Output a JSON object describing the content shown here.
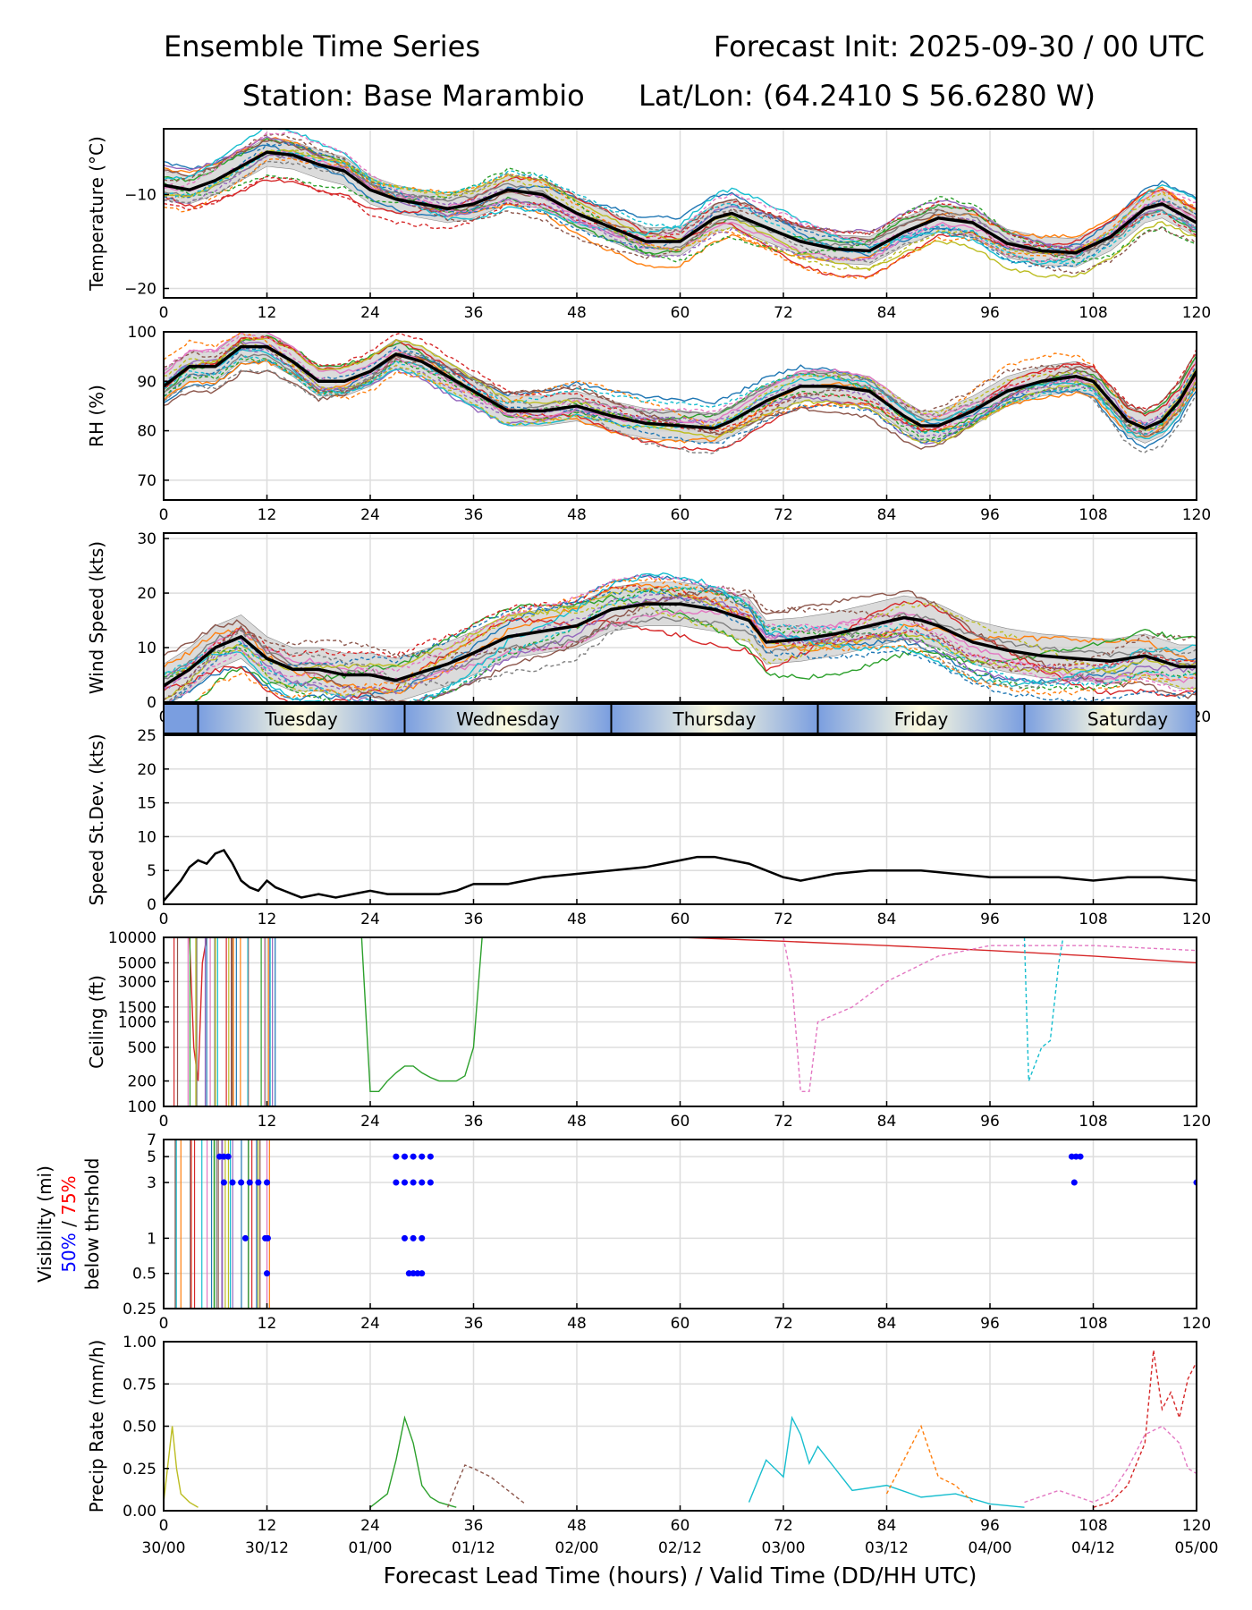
{
  "header": {
    "title": "Ensemble Time Series",
    "init": "Forecast Init: 2025-09-30 / 00 UTC",
    "station": "Station: Base Marambio",
    "latlon": "Lat/Lon: (64.2410 S 56.6280 W)"
  },
  "xaxis": {
    "ticks": [
      "0",
      "12",
      "24",
      "36",
      "48",
      "60",
      "72",
      "84",
      "96",
      "108",
      "120"
    ],
    "valid_times": [
      "30/00",
      "30/12",
      "01/00",
      "01/12",
      "02/00",
      "02/12",
      "03/00",
      "03/12",
      "04/00",
      "04/12",
      "05/00"
    ],
    "label": "Forecast Lead Time (hours) / Valid Time (DD/HH UTC)"
  },
  "days": {
    "labels": [
      "Tuesday",
      "Wednesday",
      "Thursday",
      "Friday",
      "Saturday"
    ],
    "boundaries_hours": [
      4,
      28,
      52,
      76,
      100
    ]
  },
  "colors": {
    "members": [
      "#1f77b4",
      "#ff7f0e",
      "#2ca02c",
      "#d62728",
      "#9467bd",
      "#8c564b",
      "#e377c2",
      "#7f7f7f",
      "#bcbd22",
      "#17becf"
    ],
    "mean": "#000000",
    "spread": "#cccccc",
    "p50": "#0000ff",
    "p75": "#ff0000",
    "day_blue": "#7a9ee0",
    "day_cream": "#fdfbe0"
  },
  "chart_data": [
    {
      "id": "temperature",
      "type": "line",
      "ylabel": "Temperature (°C)",
      "ylim": [
        -21,
        -3
      ],
      "yticks": [
        "−10",
        "−20"
      ],
      "ytick_values": [
        -10,
        -20
      ],
      "mean": {
        "x": [
          0,
          3,
          6,
          9,
          12,
          15,
          18,
          21,
          24,
          27,
          30,
          33,
          36,
          40,
          44,
          48,
          52,
          56,
          60,
          64,
          66,
          70,
          74,
          78,
          82,
          86,
          90,
          94,
          98,
          102,
          106,
          110,
          114,
          116,
          120
        ],
        "y": [
          -9,
          -9.5,
          -8.5,
          -7,
          -5.5,
          -5.8,
          -6.8,
          -7.5,
          -9.5,
          -10.5,
          -11,
          -11.5,
          -11,
          -9.5,
          -10,
          -12,
          -13.5,
          -15,
          -15,
          -12.5,
          -12,
          -13.5,
          -15,
          -15.8,
          -16,
          -14,
          -12.5,
          -13,
          -15.2,
          -16,
          -16.2,
          -14.5,
          -11.5,
          -11,
          -13
        ]
      },
      "spread_halfwidth": 1.5
    },
    {
      "id": "rh",
      "type": "line",
      "ylabel": "RH (%)",
      "ylim": [
        66,
        100
      ],
      "yticks": [
        "100",
        "90",
        "80",
        "70"
      ],
      "ytick_values": [
        100,
        90,
        80,
        70
      ],
      "mean": {
        "x": [
          0,
          3,
          6,
          9,
          12,
          15,
          18,
          21,
          24,
          27,
          30,
          33,
          36,
          40,
          44,
          48,
          52,
          56,
          60,
          64,
          66,
          70,
          74,
          78,
          82,
          86,
          88,
          90,
          94,
          98,
          102,
          106,
          108,
          110,
          112,
          114,
          116,
          118,
          120
        ],
        "y": [
          89,
          93,
          93,
          97,
          97,
          94,
          90,
          90,
          92,
          95.5,
          94,
          91,
          88,
          84,
          84,
          85,
          83,
          81.5,
          81,
          80.5,
          82,
          86,
          89,
          89,
          88,
          83,
          81,
          81,
          84,
          88,
          90,
          91,
          90,
          86,
          82,
          80.5,
          82,
          86,
          92
        ]
      },
      "spread_halfwidth": 3
    },
    {
      "id": "wind_speed",
      "type": "line",
      "ylabel": "Wind Speed (kts)",
      "ylim": [
        0,
        31
      ],
      "yticks": [
        "0",
        "10",
        "20",
        "30"
      ],
      "ytick_values": [
        0,
        10,
        20,
        30
      ],
      "mean": {
        "x": [
          0,
          1,
          3,
          6,
          9,
          12,
          15,
          18,
          21,
          24,
          27,
          30,
          33,
          36,
          40,
          44,
          48,
          52,
          56,
          60,
          64,
          68,
          70,
          74,
          78,
          82,
          86,
          88,
          90,
          94,
          98,
          102,
          106,
          110,
          114,
          118,
          120
        ],
        "y": [
          3,
          4,
          6,
          10,
          12,
          8,
          6,
          6,
          5,
          5,
          4,
          5.5,
          7,
          9,
          12,
          13,
          14,
          17,
          18,
          18,
          17,
          15,
          11,
          11.5,
          12.5,
          14,
          15.5,
          15,
          14,
          11,
          9.5,
          8.5,
          8,
          7.5,
          8.5,
          6.5,
          6.5
        ]
      },
      "spread_halfwidth": 4
    },
    {
      "id": "speed_stdev",
      "type": "line",
      "ylabel": "Speed St.Dev. (kts)",
      "ylim": [
        0,
        25
      ],
      "yticks": [
        "0",
        "5",
        "10",
        "15",
        "20",
        "25"
      ],
      "ytick_values": [
        0,
        5,
        10,
        15,
        20,
        25
      ],
      "series": [
        {
          "name": "St.Dev.",
          "x": [
            0,
            1,
            2,
            3,
            4,
            5,
            6,
            7,
            8,
            9,
            10,
            11,
            12,
            13,
            14,
            15,
            16,
            18,
            20,
            22,
            24,
            26,
            28,
            30,
            32,
            34,
            36,
            40,
            44,
            48,
            52,
            56,
            60,
            62,
            64,
            68,
            70,
            72,
            74,
            78,
            82,
            84,
            88,
            92,
            96,
            100,
            104,
            108,
            112,
            116,
            120
          ],
          "y": [
            0.5,
            2,
            3.5,
            5.5,
            6.5,
            6,
            7.5,
            8,
            6,
            3.5,
            2.5,
            2,
            3.5,
            2.5,
            2,
            1.5,
            1,
            1.5,
            1,
            1.5,
            2,
            1.5,
            1.5,
            1.5,
            1.5,
            2,
            3,
            3,
            4,
            4.5,
            5,
            5.5,
            6.5,
            7,
            7,
            6,
            5,
            4,
            3.5,
            4.5,
            5,
            5,
            5,
            4.5,
            4,
            4,
            4,
            3.5,
            4,
            4,
            3.5
          ]
        }
      ]
    },
    {
      "id": "ceiling",
      "type": "line",
      "ylabel": "Ceiling (ft)",
      "scale": "log",
      "ylim": [
        100,
        10000
      ],
      "yticks": [
        "10000",
        "5000",
        "3000",
        "1500",
        "1000",
        "500",
        "200",
        "100"
      ],
      "ytick_values": [
        10000,
        5000,
        3000,
        1500,
        1000,
        500,
        200,
        100
      ],
      "series": [
        {
          "name": "m1",
          "style": "solid",
          "x": [
            0,
            3,
            3.5,
            4,
            4.5,
            5,
            60,
            72,
            84,
            96,
            108,
            120
          ],
          "y": [
            10000,
            10000,
            500,
            200,
            5000,
            10000,
            10000,
            9000,
            8000,
            7000,
            6000,
            5000
          ]
        },
        {
          "name": "m2",
          "style": "dashed",
          "x": [
            72,
            73,
            74,
            75,
            76,
            80,
            84,
            90,
            96,
            108,
            120
          ],
          "y": [
            10000,
            3000,
            150,
            150,
            1000,
            1500,
            3000,
            6000,
            8000,
            8000,
            7000
          ]
        },
        {
          "name": "m3",
          "style": "dashed",
          "x": [
            100,
            100.5,
            102,
            103,
            104,
            104.5,
            120
          ],
          "y": [
            10000,
            200,
            500,
            600,
            5000,
            10000,
            10000
          ]
        },
        {
          "name": "m4",
          "style": "solid",
          "x": [
            23,
            24,
            25,
            26,
            27,
            28,
            29,
            30,
            31,
            32,
            33,
            34,
            35,
            36,
            37,
            120
          ],
          "y": [
            10000,
            150,
            150,
            200,
            250,
            300,
            300,
            250,
            220,
            200,
            200,
            200,
            230,
            500,
            10000,
            10000
          ]
        }
      ]
    },
    {
      "id": "visibility",
      "type": "line",
      "ylabel": "Visibility (mi)",
      "ylabel2_blue": "50%",
      "ylabel2_sep": " / ",
      "ylabel2_red": "75%",
      "ylabel3": "below thrshold",
      "scale": "log",
      "ylim": [
        0.25,
        7
      ],
      "yticks": [
        "7",
        "5",
        "3",
        "1",
        "0.5",
        "0.25"
      ],
      "ytick_values": [
        7,
        5,
        3,
        1,
        0.5,
        0.25
      ],
      "threshold_points": [
        {
          "x": [
            6.5,
            7,
            7.5
          ],
          "y": [
            5,
            5,
            5
          ]
        },
        {
          "x": [
            7,
            8,
            9,
            10,
            11,
            12
          ],
          "y": [
            3,
            3,
            3,
            3,
            3,
            3
          ]
        },
        {
          "x": [
            9.5
          ],
          "y": [
            1
          ]
        },
        {
          "x": [
            11.8,
            12.1
          ],
          "y": [
            1,
            1
          ]
        },
        {
          "x": [
            12
          ],
          "y": [
            0.5
          ]
        },
        {
          "x": [
            27,
            28,
            29,
            30,
            31
          ],
          "y": [
            5,
            5,
            5,
            5,
            5
          ]
        },
        {
          "x": [
            27,
            28,
            29,
            30,
            31
          ],
          "y": [
            3,
            3,
            3,
            3,
            3
          ]
        },
        {
          "x": [
            28,
            29,
            30
          ],
          "y": [
            1,
            1,
            1
          ]
        },
        {
          "x": [
            28.5,
            29,
            29.5,
            30
          ],
          "y": [
            0.5,
            0.5,
            0.5,
            0.5
          ]
        },
        {
          "x": [
            105.5,
            106,
            106.5
          ],
          "y": [
            5,
            5,
            5
          ]
        },
        {
          "x": [
            105.8
          ],
          "y": [
            3
          ]
        },
        {
          "x": [
            120
          ],
          "y": [
            3
          ]
        }
      ]
    },
    {
      "id": "precip_rate",
      "type": "line",
      "ylabel": "Precip Rate (mm/h)",
      "ylim": [
        0,
        1
      ],
      "yticks": [
        "0.00",
        "0.25",
        "0.50",
        "0.75",
        "1.00"
      ],
      "ytick_values": [
        0,
        0.25,
        0.5,
        0.75,
        1
      ],
      "series": [
        {
          "name": "m1",
          "style": "dashed",
          "x": [
            108,
            110,
            112,
            114,
            115,
            116,
            117,
            118,
            119,
            120
          ],
          "y": [
            0.02,
            0.05,
            0.15,
            0.4,
            0.95,
            0.6,
            0.7,
            0.55,
            0.78,
            0.88
          ]
        },
        {
          "name": "m2",
          "style": "dashed",
          "x": [
            100,
            104,
            108,
            110,
            112,
            114,
            116,
            118,
            119,
            120
          ],
          "y": [
            0.05,
            0.12,
            0.05,
            0.1,
            0.25,
            0.45,
            0.5,
            0.4,
            0.25,
            0.22
          ]
        },
        {
          "name": "m3",
          "style": "solid",
          "x": [
            68,
            70,
            72,
            73,
            74,
            75,
            76,
            78,
            80,
            84,
            88,
            92,
            96,
            100
          ],
          "y": [
            0.05,
            0.3,
            0.2,
            0.55,
            0.45,
            0.28,
            0.38,
            0.25,
            0.12,
            0.15,
            0.08,
            0.1,
            0.04,
            0.02
          ]
        },
        {
          "name": "m4",
          "style": "solid",
          "x": [
            24,
            26,
            27,
            28,
            29,
            30,
            31,
            32,
            34
          ],
          "y": [
            0.02,
            0.1,
            0.3,
            0.55,
            0.4,
            0.15,
            0.08,
            0.05,
            0.02
          ]
        },
        {
          "name": "m5",
          "style": "dashed",
          "x": [
            33,
            34,
            35,
            36,
            38,
            40,
            42
          ],
          "y": [
            0.02,
            0.15,
            0.27,
            0.25,
            0.2,
            0.12,
            0.04
          ]
        },
        {
          "name": "m6",
          "style": "solid",
          "x": [
            0,
            1,
            1.5,
            2,
            3,
            4
          ],
          "y": [
            0.05,
            0.5,
            0.25,
            0.1,
            0.05,
            0.02
          ]
        },
        {
          "name": "m7",
          "style": "dashed",
          "x": [
            84,
            86,
            88,
            90,
            92,
            94
          ],
          "y": [
            0.1,
            0.3,
            0.5,
            0.2,
            0.15,
            0.05
          ]
        }
      ]
    }
  ]
}
